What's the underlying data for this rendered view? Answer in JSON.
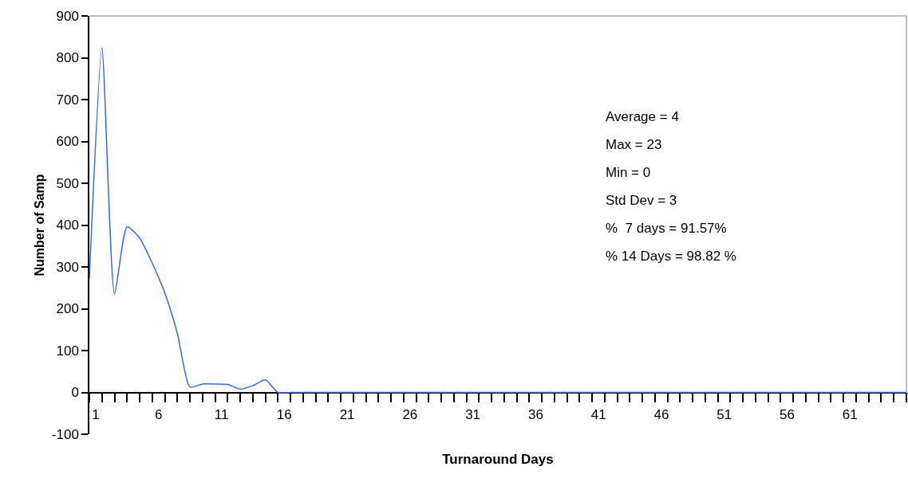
{
  "chart_data": {
    "type": "line",
    "xlabel": "Turnaround Days",
    "ylabel": "Number of Samp",
    "x": [
      1,
      2,
      3,
      4,
      5,
      6,
      7,
      8,
      9,
      10,
      11,
      12,
      13,
      14,
      15,
      16,
      17,
      18,
      19,
      20,
      21,
      22,
      23,
      24,
      25,
      26,
      27,
      28,
      29,
      30,
      31,
      32,
      33,
      34,
      35,
      36,
      37,
      38,
      39,
      40,
      41,
      42,
      43,
      44,
      45,
      46,
      47,
      48,
      49,
      50,
      51,
      52,
      53,
      54,
      55,
      56,
      57,
      58,
      59,
      60,
      61,
      62,
      63,
      64,
      65,
      66
    ],
    "series": [
      {
        "color": "#3366ff",
        "values": [
          272,
          824,
          235,
          396,
          369,
          309,
          238,
          141,
          13,
          20,
          20,
          19,
          8,
          16,
          30,
          0,
          0,
          0,
          0,
          0,
          0,
          0,
          0,
          0,
          0,
          0,
          0,
          0,
          0,
          0,
          0,
          0,
          0,
          0,
          0,
          0,
          0,
          0,
          0,
          0,
          0,
          0,
          0,
          0,
          0,
          0,
          0,
          0,
          0,
          0,
          0,
          0,
          0,
          0,
          0,
          0,
          0,
          0,
          0,
          0,
          0,
          0,
          0,
          0,
          0,
          0
        ]
      }
    ],
    "xlim": [
      1,
      66
    ],
    "xticks": [
      1,
      {
        "value": 2,
        "label": null
      },
      {
        "value": 3,
        "label": null
      },
      {
        "value": 4,
        "label": null
      },
      {
        "value": 5,
        "label": null
      },
      6,
      {
        "value": 7,
        "label": null
      },
      {
        "value": 8,
        "label": null
      },
      {
        "value": 9,
        "label": null
      },
      {
        "value": 10,
        "label": null
      },
      11,
      {
        "value": 12,
        "label": null
      },
      {
        "value": 13,
        "label": null
      },
      {
        "value": 14,
        "label": null
      },
      {
        "value": 15,
        "label": null
      },
      16,
      {
        "value": 17,
        "label": null
      },
      {
        "value": 18,
        "label": null
      },
      {
        "value": 19,
        "label": null
      },
      {
        "value": 20,
        "label": null
      },
      21,
      {
        "value": 22,
        "label": null
      },
      {
        "value": 23,
        "label": null
      },
      {
        "value": 24,
        "label": null
      },
      {
        "value": 25,
        "label": null
      },
      26,
      {
        "value": 27,
        "label": null
      },
      {
        "value": 28,
        "label": null
      },
      {
        "value": 29,
        "label": null
      },
      {
        "value": 30,
        "label": null
      },
      31,
      {
        "value": 32,
        "label": null
      },
      {
        "value": 33,
        "label": null
      },
      {
        "value": 34,
        "label": null
      },
      {
        "value": 35,
        "label": null
      },
      36,
      {
        "value": 37,
        "label": null
      },
      {
        "value": 38,
        "label": null
      },
      {
        "value": 39,
        "label": null
      },
      {
        "value": 40,
        "label": null
      },
      41,
      {
        "value": 42,
        "label": null
      },
      {
        "value": 43,
        "label": null
      },
      {
        "value": 44,
        "label": null
      },
      {
        "value": 45,
        "label": null
      },
      46,
      {
        "value": 47,
        "label": null
      },
      {
        "value": 48,
        "label": null
      },
      {
        "value": 49,
        "label": null
      },
      {
        "value": 50,
        "label": null
      },
      51,
      {
        "value": 52,
        "label": null
      },
      {
        "value": 53,
        "label": null
      },
      {
        "value": 54,
        "label": null
      },
      {
        "value": 55,
        "label": null
      },
      56,
      {
        "value": 57,
        "label": null
      },
      {
        "value": 58,
        "label": null
      },
      {
        "value": 59,
        "label": null
      },
      {
        "value": 60,
        "label": null
      },
      61,
      {
        "value": 62,
        "label": null
      },
      {
        "value": 63,
        "label": null
      },
      {
        "value": 64,
        "label": null
      },
      {
        "value": 65,
        "label": null
      },
      {
        "value": 66,
        "label": null
      }
    ],
    "ylim": [
      -100,
      900
    ],
    "yticks": [
      -100,
      0,
      100,
      200,
      300,
      400,
      500,
      600,
      700,
      800,
      900
    ],
    "grid": false,
    "marker": "none",
    "line_style": "solid",
    "annotations": [
      "Average = 4",
      "Max = 23",
      "Min = 0",
      "Std Dev = 3",
      "%  7 days = 91.57%",
      "% 14 Days = 98.82 %"
    ]
  }
}
